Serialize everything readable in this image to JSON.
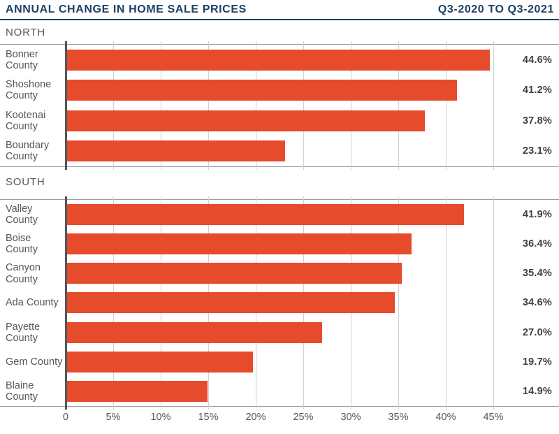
{
  "header": {
    "title": "ANNUAL CHANGE IN HOME SALE PRICES",
    "period": "Q3-2020 TO Q3-2021"
  },
  "colors": {
    "navy": "#1B4164",
    "bar": "#E64B2B",
    "grid": "#CFD1D3",
    "border": "#9B9DA0",
    "axis": "#55565B",
    "text_gray": "#55565A",
    "value_text": "#414042"
  },
  "chart_data": {
    "type": "bar",
    "orientation": "horizontal",
    "title": "ANNUAL CHANGE IN HOME SALE PRICES",
    "subtitle": "Q3-2020 TO Q3-2021",
    "xlabel": "",
    "ylabel": "",
    "xlim": [
      0,
      47.5
    ],
    "grid": true,
    "x_tick_values": [
      0,
      5,
      10,
      15,
      20,
      25,
      30,
      35,
      40,
      45
    ],
    "x_tick_labels": [
      "0",
      "5%",
      "10%",
      "15%",
      "20%",
      "25%",
      "30%",
      "35%",
      "40%",
      "45%"
    ],
    "groups": [
      {
        "label": "NORTH",
        "categories": [
          "Bonner County",
          "Shoshone County",
          "Kootenai County",
          "Boundary County"
        ],
        "values": [
          44.6,
          41.2,
          37.8,
          23.1
        ],
        "value_labels": [
          "44.6%",
          "41.2%",
          "37.8%",
          "23.1%"
        ]
      },
      {
        "label": "SOUTH",
        "categories": [
          "Valley County",
          "Boise County",
          "Canyon County",
          "Ada County",
          "Payette County",
          "Gem County",
          "Blaine County"
        ],
        "values": [
          41.9,
          36.4,
          35.4,
          34.6,
          27.0,
          19.7,
          14.9
        ],
        "value_labels": [
          "41.9%",
          "36.4%",
          "35.4%",
          "34.6%",
          "27.0%",
          "19.7%",
          "14.9%"
        ]
      }
    ],
    "bar_color": "#E64B2B"
  }
}
